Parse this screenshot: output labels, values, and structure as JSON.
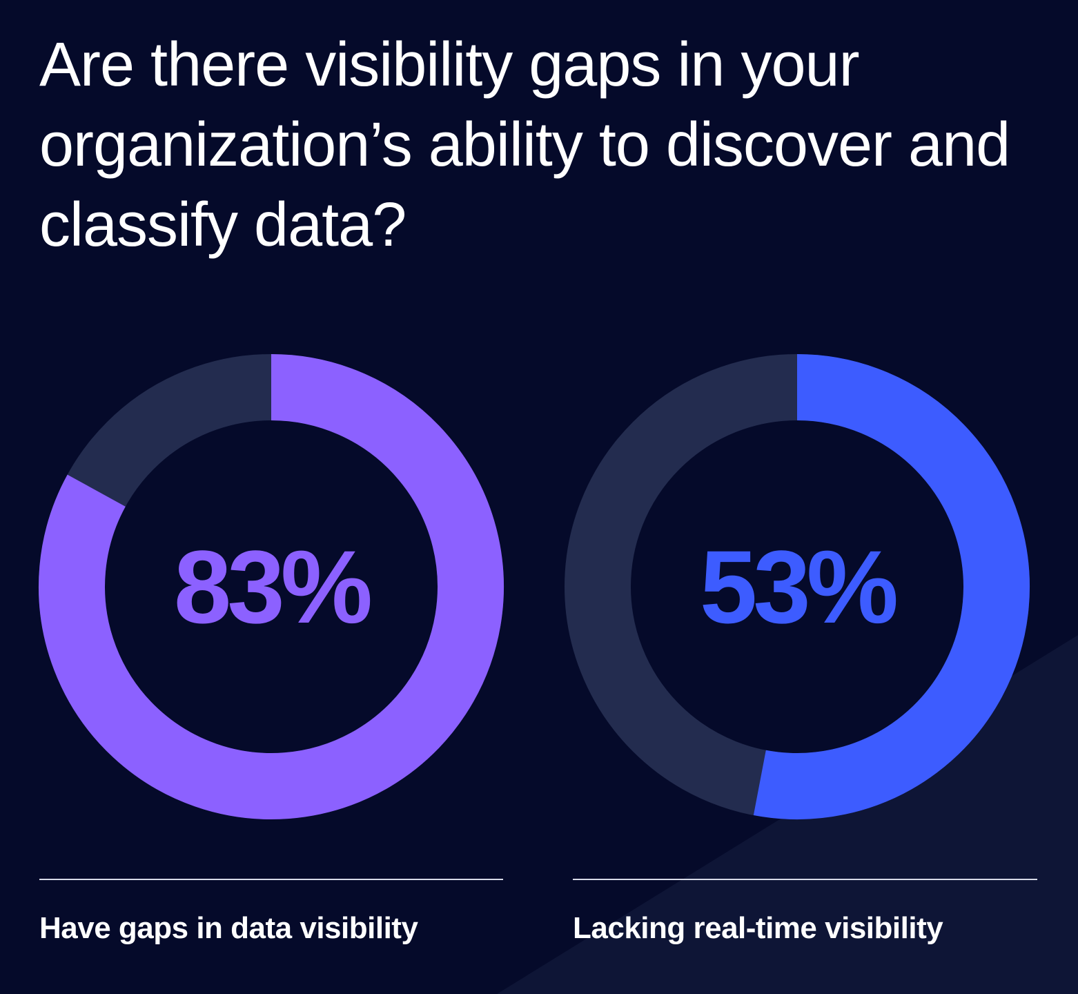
{
  "title": "Are there visibility gaps in your organization’s ability to discover and classify data?",
  "colors": {
    "background": "#050a2a",
    "track": "#232c4f",
    "purple": "#8c61ff",
    "blue": "#3d5cff"
  },
  "chart_data": [
    {
      "type": "pie",
      "variant": "donut",
      "values": [
        83,
        17
      ],
      "display_value": "83%",
      "label": "Have gaps in data visibility",
      "color": "#8c61ff",
      "track_color": "#232c4f"
    },
    {
      "type": "pie",
      "variant": "donut",
      "values": [
        53,
        47
      ],
      "display_value": "53%",
      "label": "Lacking real-time visibility",
      "color": "#3d5cff",
      "track_color": "#232c4f"
    }
  ]
}
